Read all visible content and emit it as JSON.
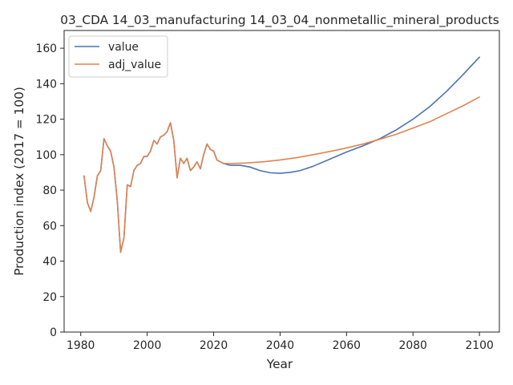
{
  "chart_data": {
    "type": "line",
    "title": "03_CDA 14_03_manufacturing 14_03_04_nonmetallic_mineral_products",
    "xlabel": "Year",
    "ylabel": "Production index (2017 = 100)",
    "xlim": [
      1975,
      2106
    ],
    "ylim": [
      0,
      170
    ],
    "xticks": [
      1980,
      2000,
      2020,
      2040,
      2060,
      2080,
      2100
    ],
    "yticks": [
      0,
      20,
      40,
      60,
      80,
      100,
      120,
      140,
      160
    ],
    "grid": false,
    "legend_position": "upper-left",
    "series": [
      {
        "name": "value",
        "color": "#4c72b0",
        "points": [
          [
            1981,
            88
          ],
          [
            1982,
            73
          ],
          [
            1983,
            68
          ],
          [
            1984,
            76
          ],
          [
            1985,
            88
          ],
          [
            1986,
            91
          ],
          [
            1987,
            109
          ],
          [
            1988,
            105
          ],
          [
            1989,
            102
          ],
          [
            1990,
            93
          ],
          [
            1991,
            74
          ],
          [
            1992,
            45
          ],
          [
            1993,
            53
          ],
          [
            1994,
            83
          ],
          [
            1995,
            82
          ],
          [
            1996,
            91
          ],
          [
            1997,
            94
          ],
          [
            1998,
            95
          ],
          [
            1999,
            99
          ],
          [
            2000,
            99
          ],
          [
            2001,
            102
          ],
          [
            2002,
            108
          ],
          [
            2003,
            106
          ],
          [
            2004,
            110
          ],
          [
            2005,
            111
          ],
          [
            2006,
            113
          ],
          [
            2007,
            118
          ],
          [
            2008,
            108
          ],
          [
            2009,
            87
          ],
          [
            2010,
            98
          ],
          [
            2011,
            95
          ],
          [
            2012,
            98
          ],
          [
            2013,
            91
          ],
          [
            2014,
            93
          ],
          [
            2015,
            96
          ],
          [
            2016,
            92
          ],
          [
            2017,
            100
          ],
          [
            2018,
            106
          ],
          [
            2019,
            103
          ],
          [
            2020,
            102
          ],
          [
            2021,
            97
          ],
          [
            2022,
            96
          ],
          [
            2023,
            95
          ],
          [
            2025,
            94
          ],
          [
            2028,
            94
          ],
          [
            2031,
            93
          ],
          [
            2034,
            91
          ],
          [
            2037,
            89.8
          ],
          [
            2040,
            89.5
          ],
          [
            2043,
            90
          ],
          [
            2046,
            91
          ],
          [
            2050,
            93.5
          ],
          [
            2055,
            97.5
          ],
          [
            2060,
            101.5
          ],
          [
            2065,
            105
          ],
          [
            2070,
            109
          ],
          [
            2075,
            114
          ],
          [
            2080,
            120
          ],
          [
            2085,
            127
          ],
          [
            2090,
            135.5
          ],
          [
            2095,
            145
          ],
          [
            2100,
            155
          ]
        ]
      },
      {
        "name": "adj_value",
        "color": "#dd8452",
        "points": [
          [
            1981,
            88
          ],
          [
            1982,
            73
          ],
          [
            1983,
            68
          ],
          [
            1984,
            76
          ],
          [
            1985,
            88
          ],
          [
            1986,
            91
          ],
          [
            1987,
            109
          ],
          [
            1988,
            105
          ],
          [
            1989,
            102
          ],
          [
            1990,
            93
          ],
          [
            1991,
            74
          ],
          [
            1992,
            45
          ],
          [
            1993,
            53
          ],
          [
            1994,
            83
          ],
          [
            1995,
            82
          ],
          [
            1996,
            91
          ],
          [
            1997,
            94
          ],
          [
            1998,
            95
          ],
          [
            1999,
            99
          ],
          [
            2000,
            99
          ],
          [
            2001,
            102
          ],
          [
            2002,
            108
          ],
          [
            2003,
            106
          ],
          [
            2004,
            110
          ],
          [
            2005,
            111
          ],
          [
            2006,
            113
          ],
          [
            2007,
            118
          ],
          [
            2008,
            108
          ],
          [
            2009,
            87
          ],
          [
            2010,
            98
          ],
          [
            2011,
            95
          ],
          [
            2012,
            98
          ],
          [
            2013,
            91
          ],
          [
            2014,
            93
          ],
          [
            2015,
            96
          ],
          [
            2016,
            92
          ],
          [
            2017,
            100
          ],
          [
            2018,
            106
          ],
          [
            2019,
            103
          ],
          [
            2020,
            102
          ],
          [
            2021,
            97
          ],
          [
            2022,
            96
          ],
          [
            2023,
            95
          ],
          [
            2025,
            95
          ],
          [
            2030,
            95.3
          ],
          [
            2035,
            96
          ],
          [
            2040,
            97
          ],
          [
            2045,
            98.3
          ],
          [
            2050,
            100
          ],
          [
            2055,
            101.8
          ],
          [
            2060,
            103.8
          ],
          [
            2065,
            106
          ],
          [
            2070,
            108.7
          ],
          [
            2075,
            111.5
          ],
          [
            2080,
            115
          ],
          [
            2085,
            118.5
          ],
          [
            2090,
            123
          ],
          [
            2095,
            127.5
          ],
          [
            2100,
            132.5
          ]
        ]
      }
    ]
  }
}
